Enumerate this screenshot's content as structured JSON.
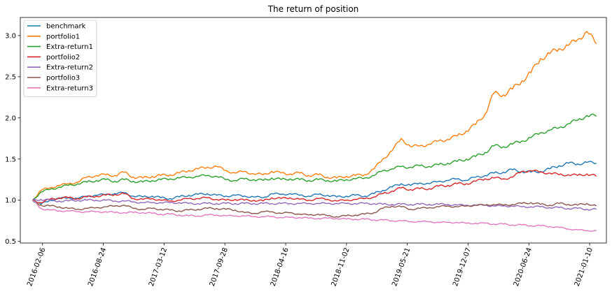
{
  "chart_data": {
    "type": "line",
    "title": "The return of position",
    "xlabel": "",
    "ylabel": "",
    "x_type": "date",
    "xlim": [
      "2015-11-25",
      "2021-03-06"
    ],
    "ylim": [
      0.48,
      3.22
    ],
    "yticks": [
      0.5,
      1.0,
      1.5,
      2.0,
      2.5,
      3.0
    ],
    "ytick_labels": [
      "0.5",
      "1.0",
      "1.5",
      "2.0",
      "2.5",
      "3.0"
    ],
    "xticks": [
      "2016-02-06",
      "2016-08-24",
      "2017-03-12",
      "2017-09-28",
      "2018-04-16",
      "2018-11-02",
      "2019-05-21",
      "2019-12-07",
      "2020-06-24",
      "2021-01-10"
    ],
    "grid": false,
    "legend_position": "top-left",
    "x": [
      "2016-01-04",
      "2016-02-01",
      "2016-03-01",
      "2016-04-01",
      "2016-05-01",
      "2016-06-01",
      "2016-07-01",
      "2016-08-01",
      "2016-09-01",
      "2016-10-01",
      "2016-11-01",
      "2016-12-01",
      "2017-01-01",
      "2017-02-01",
      "2017-03-01",
      "2017-04-01",
      "2017-05-01",
      "2017-06-01",
      "2017-07-01",
      "2017-08-01",
      "2017-09-01",
      "2017-10-01",
      "2017-11-01",
      "2017-12-01",
      "2018-01-01",
      "2018-02-01",
      "2018-03-01",
      "2018-04-01",
      "2018-05-01",
      "2018-06-01",
      "2018-07-01",
      "2018-08-01",
      "2018-09-01",
      "2018-10-01",
      "2018-11-01",
      "2018-12-01",
      "2019-01-01",
      "2019-02-01",
      "2019-03-01",
      "2019-04-01",
      "2019-05-01",
      "2019-06-01",
      "2019-07-01",
      "2019-08-01",
      "2019-09-01",
      "2019-10-01",
      "2019-11-01",
      "2019-12-01",
      "2020-01-01",
      "2020-02-01",
      "2020-03-01",
      "2020-04-01",
      "2020-05-01",
      "2020-06-01",
      "2020-07-01",
      "2020-08-01",
      "2020-09-01",
      "2020-10-01",
      "2020-11-01",
      "2020-12-01",
      "2021-01-01",
      "2021-02-01"
    ],
    "series": [
      {
        "name": "benchmark",
        "color": "#1f77b4",
        "values": [
          1.0,
          0.95,
          1.0,
          1.02,
          1.03,
          1.02,
          1.05,
          1.06,
          1.07,
          1.08,
          1.09,
          1.05,
          1.04,
          1.05,
          1.03,
          1.02,
          1.04,
          1.06,
          1.07,
          1.08,
          1.06,
          1.05,
          1.06,
          1.05,
          1.04,
          1.03,
          1.08,
          1.07,
          1.08,
          1.06,
          1.05,
          1.07,
          1.06,
          1.04,
          1.05,
          1.06,
          1.05,
          1.08,
          1.12,
          1.16,
          1.2,
          1.18,
          1.21,
          1.2,
          1.23,
          1.24,
          1.26,
          1.24,
          1.28,
          1.3,
          1.33,
          1.34,
          1.37,
          1.35,
          1.34,
          1.35,
          1.38,
          1.42,
          1.45,
          1.44,
          1.46,
          1.45
        ]
      },
      {
        "name": "portfolio1",
        "color": "#ff7f0e",
        "values": [
          1.0,
          1.12,
          1.15,
          1.18,
          1.2,
          1.22,
          1.28,
          1.3,
          1.31,
          1.3,
          1.34,
          1.28,
          1.27,
          1.29,
          1.3,
          1.31,
          1.33,
          1.36,
          1.38,
          1.4,
          1.41,
          1.36,
          1.33,
          1.35,
          1.32,
          1.31,
          1.35,
          1.33,
          1.32,
          1.33,
          1.3,
          1.31,
          1.28,
          1.27,
          1.29,
          1.3,
          1.31,
          1.38,
          1.5,
          1.6,
          1.75,
          1.65,
          1.66,
          1.68,
          1.72,
          1.74,
          1.78,
          1.84,
          1.92,
          2.05,
          2.3,
          2.28,
          2.35,
          2.45,
          2.55,
          2.72,
          2.78,
          2.84,
          2.88,
          2.95,
          3.05,
          2.9
        ]
      },
      {
        "name": "Extra-return1",
        "color": "#2ca02c",
        "values": [
          1.0,
          1.1,
          1.13,
          1.16,
          1.18,
          1.2,
          1.22,
          1.24,
          1.25,
          1.23,
          1.25,
          1.23,
          1.22,
          1.24,
          1.25,
          1.26,
          1.27,
          1.28,
          1.29,
          1.3,
          1.29,
          1.25,
          1.24,
          1.26,
          1.25,
          1.24,
          1.27,
          1.25,
          1.26,
          1.25,
          1.24,
          1.25,
          1.24,
          1.23,
          1.25,
          1.26,
          1.27,
          1.3,
          1.36,
          1.38,
          1.41,
          1.4,
          1.42,
          1.41,
          1.43,
          1.45,
          1.47,
          1.5,
          1.53,
          1.58,
          1.66,
          1.65,
          1.68,
          1.72,
          1.76,
          1.82,
          1.85,
          1.88,
          1.93,
          1.97,
          2.03,
          2.02
        ]
      },
      {
        "name": "portfolio2",
        "color": "#d62728",
        "values": [
          1.0,
          0.97,
          1.01,
          1.03,
          1.03,
          1.02,
          1.04,
          1.05,
          1.06,
          1.07,
          1.08,
          1.02,
          1.01,
          1.02,
          1.0,
          0.99,
          1.0,
          1.02,
          1.02,
          1.03,
          1.01,
          1.0,
          1.01,
          1.0,
          1.0,
          0.99,
          1.03,
          1.02,
          1.03,
          1.01,
          1.0,
          1.02,
          1.01,
          0.99,
          1.0,
          1.01,
          1.02,
          1.04,
          1.08,
          1.11,
          1.15,
          1.13,
          1.14,
          1.14,
          1.17,
          1.18,
          1.2,
          1.2,
          1.23,
          1.26,
          1.27,
          1.26,
          1.28,
          1.35,
          1.36,
          1.34,
          1.33,
          1.31,
          1.31,
          1.3,
          1.32,
          1.29
        ]
      },
      {
        "name": "Extra-return2",
        "color": "#9467bd",
        "values": [
          1.0,
          1.01,
          1.0,
          0.99,
          0.99,
          1.0,
          1.0,
          1.0,
          1.0,
          0.99,
          0.99,
          0.98,
          0.97,
          0.97,
          0.97,
          0.97,
          0.97,
          0.96,
          0.96,
          0.96,
          0.96,
          0.96,
          0.96,
          0.96,
          0.96,
          0.96,
          0.96,
          0.96,
          0.96,
          0.96,
          0.96,
          0.96,
          0.96,
          0.96,
          0.96,
          0.96,
          0.96,
          0.96,
          0.95,
          0.95,
          0.95,
          0.95,
          0.95,
          0.95,
          0.95,
          0.95,
          0.94,
          0.94,
          0.94,
          0.94,
          0.93,
          0.93,
          0.93,
          0.92,
          0.92,
          0.92,
          0.91,
          0.91,
          0.9,
          0.9,
          0.89,
          0.89
        ]
      },
      {
        "name": "portfolio3",
        "color": "#8c564b",
        "values": [
          1.0,
          0.94,
          0.93,
          0.92,
          0.9,
          0.89,
          0.9,
          0.91,
          0.92,
          0.93,
          0.94,
          0.9,
          0.89,
          0.9,
          0.89,
          0.88,
          0.87,
          0.88,
          0.89,
          0.9,
          0.9,
          0.89,
          0.88,
          0.85,
          0.84,
          0.86,
          0.86,
          0.84,
          0.85,
          0.83,
          0.82,
          0.83,
          0.81,
          0.8,
          0.81,
          0.82,
          0.83,
          0.85,
          0.9,
          0.93,
          0.92,
          0.89,
          0.9,
          0.91,
          0.92,
          0.93,
          0.92,
          0.93,
          0.94,
          0.94,
          0.95,
          0.94,
          0.95,
          0.96,
          0.97,
          0.95,
          0.94,
          0.96,
          0.95,
          0.94,
          0.96,
          0.93
        ]
      },
      {
        "name": "Extra-return3",
        "color": "#e377c2",
        "values": [
          1.0,
          0.9,
          0.88,
          0.87,
          0.87,
          0.86,
          0.86,
          0.86,
          0.86,
          0.85,
          0.85,
          0.85,
          0.85,
          0.84,
          0.83,
          0.83,
          0.82,
          0.81,
          0.81,
          0.82,
          0.82,
          0.81,
          0.81,
          0.81,
          0.8,
          0.8,
          0.8,
          0.79,
          0.79,
          0.79,
          0.78,
          0.78,
          0.78,
          0.78,
          0.77,
          0.77,
          0.77,
          0.76,
          0.76,
          0.75,
          0.75,
          0.74,
          0.74,
          0.74,
          0.73,
          0.73,
          0.73,
          0.72,
          0.72,
          0.72,
          0.71,
          0.71,
          0.7,
          0.7,
          0.69,
          0.69,
          0.68,
          0.67,
          0.65,
          0.64,
          0.63,
          0.63
        ]
      }
    ]
  }
}
